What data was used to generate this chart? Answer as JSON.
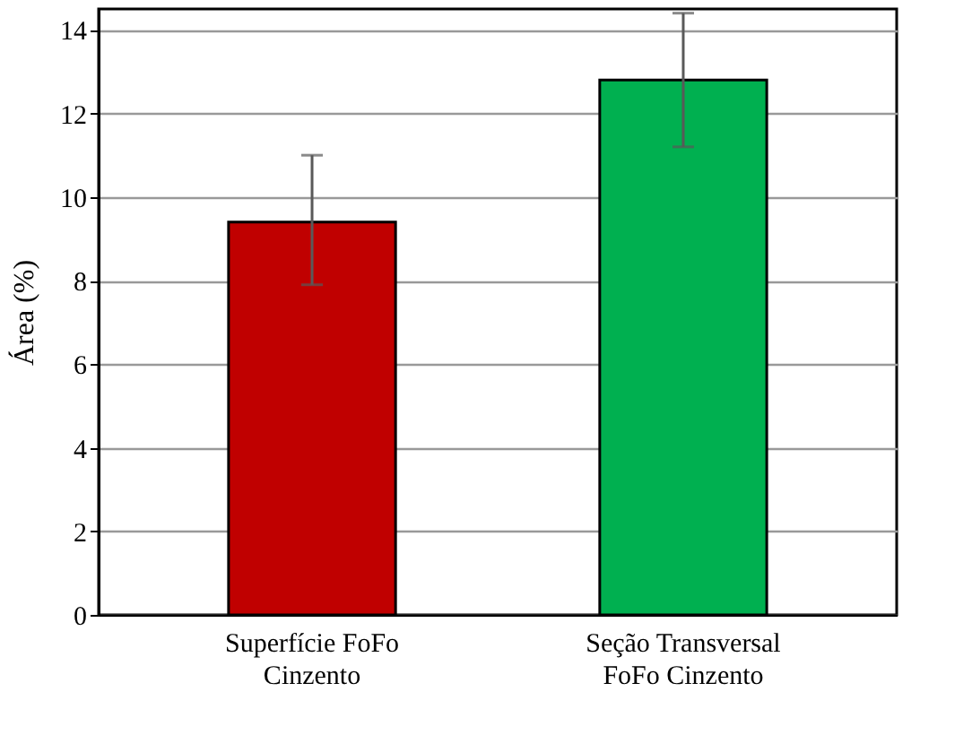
{
  "chart_data": {
    "type": "bar",
    "ylabel": "Área (%)",
    "categories": [
      "Superfície FoFo Cinzento",
      "Seção Transversal FoFo Cinzento"
    ],
    "values": [
      9.4,
      12.8
    ],
    "colors": [
      "#c00000",
      "#00b050"
    ],
    "errors": [
      [
        7.9,
        11.0
      ],
      [
        11.2,
        14.4
      ]
    ],
    "ylim": [
      0,
      14.5
    ],
    "yticks": [
      0,
      2,
      4,
      6,
      8,
      10,
      12,
      14
    ],
    "grid": "y"
  }
}
